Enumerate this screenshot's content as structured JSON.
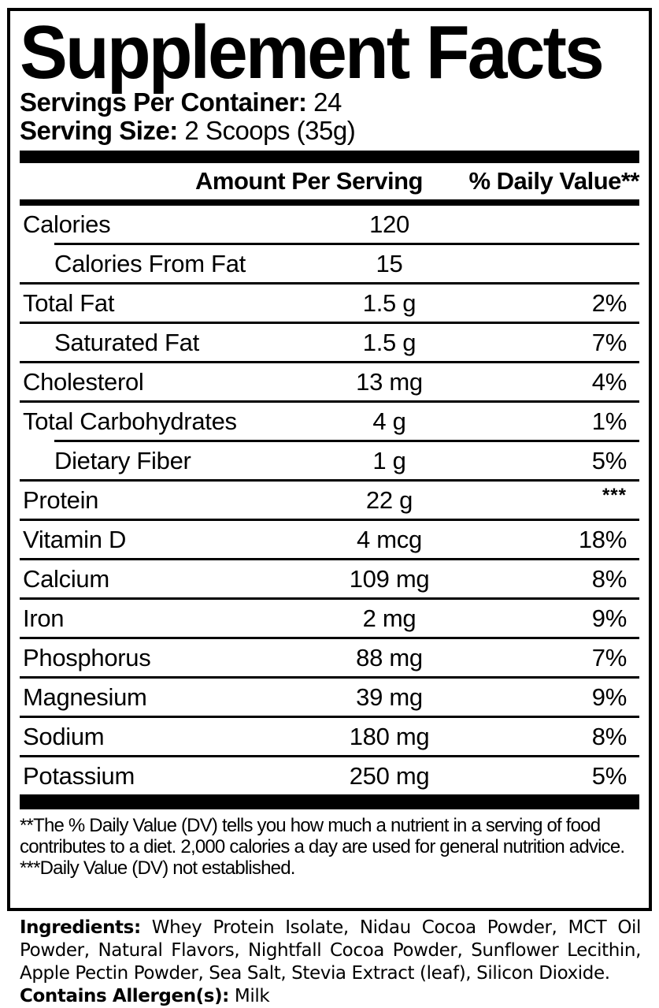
{
  "title": "Supplement Facts",
  "servings": {
    "per_container_label": "Servings Per Container:",
    "per_container_value": "24",
    "size_label": "Serving Size:",
    "size_value": "2 Scoops (35g)"
  },
  "table": {
    "header": {
      "amount": "Amount Per Serving",
      "dv": "% Daily Value**"
    },
    "rows": [
      {
        "name": "Calories",
        "amount": "120",
        "dv": "",
        "indent": false,
        "sep_indent": false,
        "dv_super": false
      },
      {
        "name": "Calories From Fat",
        "amount": "15",
        "dv": "",
        "indent": true,
        "sep_indent": true,
        "dv_super": false
      },
      {
        "name": "Total Fat",
        "amount": "1.5 g",
        "dv": "2%",
        "indent": false,
        "sep_indent": false,
        "dv_super": false
      },
      {
        "name": "Saturated Fat",
        "amount": "1.5 g",
        "dv": "7%",
        "indent": true,
        "sep_indent": false,
        "dv_super": false
      },
      {
        "name": "Cholesterol",
        "amount": "13 mg",
        "dv": "4%",
        "indent": false,
        "sep_indent": false,
        "dv_super": false
      },
      {
        "name": "Total Carbohydrates",
        "amount": "4 g",
        "dv": "1%",
        "indent": false,
        "sep_indent": false,
        "dv_super": false
      },
      {
        "name": "Dietary Fiber",
        "amount": "1 g",
        "dv": "5%",
        "indent": true,
        "sep_indent": true,
        "dv_super": false
      },
      {
        "name": "Protein",
        "amount": "22 g",
        "dv": "***",
        "indent": false,
        "sep_indent": false,
        "dv_super": true
      },
      {
        "name": "Vitamin D",
        "amount": "4 mcg",
        "dv": "18%",
        "indent": false,
        "sep_indent": false,
        "dv_super": false
      },
      {
        "name": "Calcium",
        "amount": "109 mg",
        "dv": "8%",
        "indent": false,
        "sep_indent": false,
        "dv_super": false
      },
      {
        "name": "Iron",
        "amount": "2 mg",
        "dv": "9%",
        "indent": false,
        "sep_indent": false,
        "dv_super": false
      },
      {
        "name": "Phosphorus",
        "amount": "88 mg",
        "dv": "7%",
        "indent": false,
        "sep_indent": false,
        "dv_super": false
      },
      {
        "name": "Magnesium",
        "amount": "39 mg",
        "dv": "9%",
        "indent": false,
        "sep_indent": false,
        "dv_super": false
      },
      {
        "name": "Sodium",
        "amount": "180 mg",
        "dv": "8%",
        "indent": false,
        "sep_indent": false,
        "dv_super": false
      },
      {
        "name": "Potassium",
        "amount": "250 mg",
        "dv": "5%",
        "indent": false,
        "sep_indent": false,
        "dv_super": false
      }
    ]
  },
  "footnotes": [
    "**The % Daily Value (DV) tells you how much a nutrient in a serving of food contributes to a diet. 2,000 calories a day are used for general nutrition advice.",
    "***Daily Value (DV) not established."
  ],
  "ingredients": {
    "label": "Ingredients:",
    "value": " Whey Protein Isolate, Nidau Cocoa Powder, MCT Oil Powder, Natural Flavors, Nightfall Cocoa Powder, Sunflower Lecithin, Apple Pectin Powder, Sea Salt, Stevia Extract (leaf), Silicon Dioxide.",
    "allergen_label": "Contains Allergen(s):",
    "allergen_value": " Milk"
  },
  "colors": {
    "text": "#000000",
    "background": "#ffffff"
  }
}
